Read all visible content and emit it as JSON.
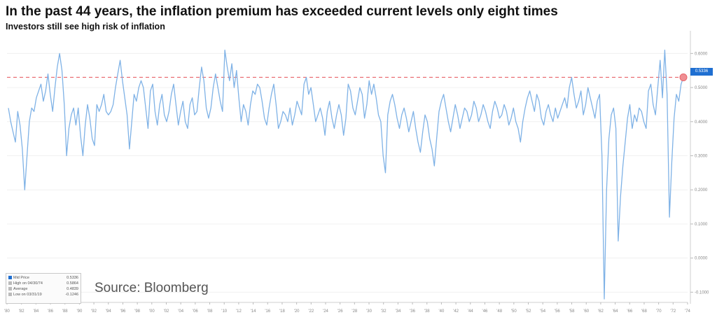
{
  "title": "In the past 44 years, the inflation premium has exceeded current levels only eight times",
  "subtitle": "Investors still see high risk of inflation",
  "source": "Source: Bloomberg",
  "colors": {
    "line": "#7fb2e6",
    "threshold": "#e8656b",
    "marker": "#ef8f93",
    "badge": "#1f6fd1"
  },
  "legend": [
    {
      "label": "Mid Price",
      "value": "0.5336",
      "swatch": "#1f6fd1"
    },
    {
      "label": "High on 04/30/74",
      "value": "0.5864",
      "swatch": "#bbbbbb"
    },
    {
      "label": "Average",
      "value": "0.4839",
      "swatch": "#bbbbbb"
    },
    {
      "label": "Low on 03/31/19",
      "value": "-0.1246",
      "swatch": "#bbbbbb"
    }
  ],
  "last_value_label": "0.5336",
  "chart_data": {
    "type": "line",
    "x_tick_labels": [
      "'80",
      "'82",
      "'84",
      "'86",
      "'88",
      "'90",
      "'92",
      "'94",
      "'96",
      "'98",
      "'00",
      "'02",
      "'04",
      "'06",
      "'08",
      "'10",
      "'12",
      "'14",
      "'16",
      "'18",
      "'20",
      "'22",
      "'24",
      "'26",
      "'28",
      "'30",
      "'32",
      "'34",
      "'36",
      "'38",
      "'40",
      "'42",
      "'44",
      "'46",
      "'48",
      "'50",
      "'52",
      "'54",
      "'56",
      "'58",
      "'60",
      "'62",
      "'64",
      "'66",
      "'68",
      "'70",
      "'72",
      "'74"
    ],
    "y_tick_labels": [
      "0.6000",
      "0.5000",
      "0.4000",
      "0.3000",
      "0.2000",
      "0.1000",
      "0.0000",
      "-0.1000"
    ],
    "ylim": [
      -0.13,
      0.65
    ],
    "threshold": 0.53,
    "legend_position": "bottom-left",
    "grid": true,
    "series": [
      {
        "values": [
          0.44,
          0.4,
          0.37,
          0.34,
          0.43,
          0.39,
          0.32,
          0.2,
          0.3,
          0.4,
          0.44,
          0.43,
          0.47,
          0.49,
          0.51,
          0.46,
          0.49,
          0.54,
          0.48,
          0.43,
          0.5,
          0.56,
          0.6,
          0.55,
          0.45,
          0.3,
          0.38,
          0.42,
          0.44,
          0.39,
          0.44,
          0.36,
          0.3,
          0.39,
          0.45,
          0.41,
          0.35,
          0.33,
          0.45,
          0.43,
          0.45,
          0.48,
          0.43,
          0.42,
          0.43,
          0.45,
          0.5,
          0.54,
          0.58,
          0.52,
          0.47,
          0.42,
          0.32,
          0.4,
          0.48,
          0.46,
          0.5,
          0.52,
          0.5,
          0.44,
          0.38,
          0.49,
          0.51,
          0.43,
          0.39,
          0.45,
          0.48,
          0.42,
          0.4,
          0.43,
          0.48,
          0.51,
          0.45,
          0.39,
          0.43,
          0.46,
          0.4,
          0.38,
          0.45,
          0.47,
          0.42,
          0.43,
          0.5,
          0.56,
          0.52,
          0.44,
          0.41,
          0.44,
          0.5,
          0.54,
          0.5,
          0.46,
          0.43,
          0.61,
          0.56,
          0.52,
          0.57,
          0.5,
          0.55,
          0.47,
          0.4,
          0.45,
          0.43,
          0.39,
          0.45,
          0.49,
          0.48,
          0.51,
          0.5,
          0.46,
          0.41,
          0.39,
          0.44,
          0.48,
          0.51,
          0.45,
          0.38,
          0.4,
          0.43,
          0.42,
          0.4,
          0.44,
          0.39,
          0.42,
          0.46,
          0.44,
          0.42,
          0.51,
          0.53,
          0.48,
          0.5,
          0.45,
          0.4,
          0.42,
          0.44,
          0.41,
          0.36,
          0.43,
          0.46,
          0.41,
          0.38,
          0.42,
          0.45,
          0.42,
          0.36,
          0.41,
          0.51,
          0.49,
          0.44,
          0.42,
          0.46,
          0.5,
          0.48,
          0.41,
          0.45,
          0.52,
          0.48,
          0.51,
          0.47,
          0.42,
          0.4,
          0.3,
          0.25,
          0.42,
          0.46,
          0.48,
          0.45,
          0.41,
          0.38,
          0.42,
          0.44,
          0.41,
          0.37,
          0.4,
          0.43,
          0.38,
          0.34,
          0.31,
          0.37,
          0.42,
          0.4,
          0.35,
          0.32,
          0.27,
          0.35,
          0.43,
          0.46,
          0.48,
          0.44,
          0.4,
          0.37,
          0.41,
          0.45,
          0.42,
          0.38,
          0.41,
          0.44,
          0.43,
          0.4,
          0.42,
          0.46,
          0.44,
          0.4,
          0.42,
          0.45,
          0.43,
          0.4,
          0.38,
          0.43,
          0.46,
          0.44,
          0.41,
          0.42,
          0.45,
          0.43,
          0.39,
          0.41,
          0.44,
          0.4,
          0.38,
          0.34,
          0.4,
          0.44,
          0.47,
          0.49,
          0.46,
          0.43,
          0.48,
          0.46,
          0.41,
          0.39,
          0.43,
          0.45,
          0.42,
          0.4,
          0.44,
          0.41,
          0.43,
          0.45,
          0.47,
          0.44,
          0.5,
          0.53,
          0.48,
          0.44,
          0.46,
          0.49,
          0.42,
          0.45,
          0.5,
          0.47,
          0.44,
          0.41,
          0.46,
          0.48,
          0.3,
          -0.12,
          0.2,
          0.35,
          0.42,
          0.44,
          0.38,
          0.05,
          0.18,
          0.27,
          0.34,
          0.41,
          0.45,
          0.38,
          0.42,
          0.4,
          0.44,
          0.43,
          0.4,
          0.38,
          0.49,
          0.51,
          0.45,
          0.42,
          0.5,
          0.58,
          0.47,
          0.61,
          0.48,
          0.12,
          0.28,
          0.41,
          0.48,
          0.46,
          0.51,
          0.53
        ]
      }
    ]
  }
}
